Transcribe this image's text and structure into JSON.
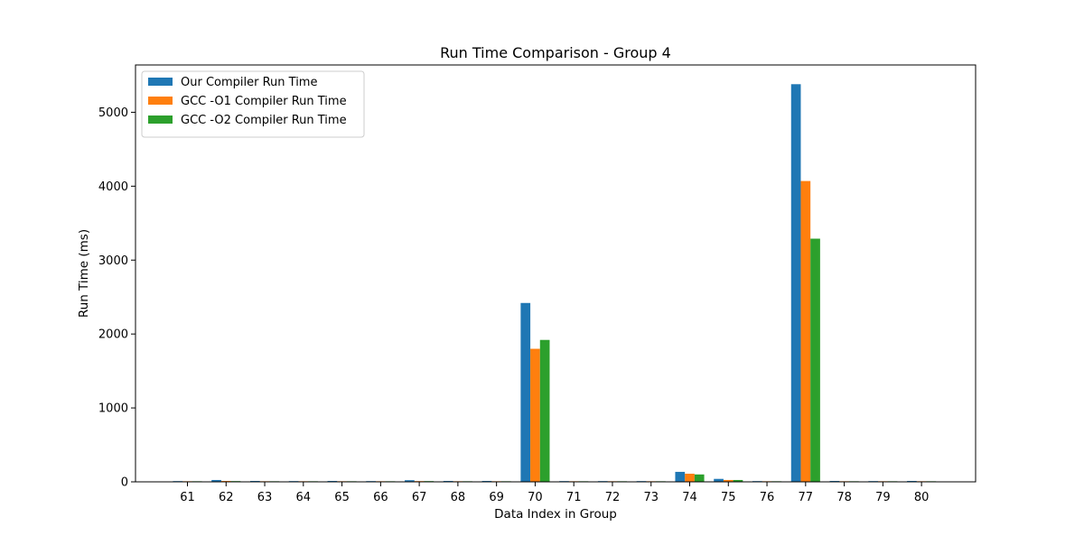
{
  "chart_data": {
    "type": "bar",
    "title": "Run Time Comparison - Group 4",
    "xlabel": "Data Index in Group",
    "ylabel": "Run Time (ms)",
    "ylim": [
      0,
      5640
    ],
    "yticks": [
      0,
      1000,
      2000,
      3000,
      4000,
      5000
    ],
    "grid": false,
    "legend_position": "top-left",
    "categories": [
      "61",
      "62",
      "63",
      "64",
      "65",
      "66",
      "67",
      "68",
      "69",
      "70",
      "71",
      "72",
      "73",
      "74",
      "75",
      "76",
      "77",
      "78",
      "79",
      "80"
    ],
    "series": [
      {
        "name": "Our Compiler Run Time",
        "color": "#1f77b4",
        "values": [
          10,
          25,
          12,
          10,
          12,
          10,
          22,
          12,
          12,
          2420,
          10,
          10,
          10,
          135,
          40,
          10,
          5380,
          12,
          10,
          12
        ]
      },
      {
        "name": "GCC -O1 Compiler Run Time",
        "color": "#ff7f0e",
        "values": [
          8,
          12,
          8,
          8,
          8,
          8,
          10,
          8,
          8,
          1800,
          8,
          8,
          8,
          110,
          25,
          8,
          4070,
          8,
          8,
          8
        ]
      },
      {
        "name": "GCC -O2 Compiler Run Time",
        "color": "#2ca02c",
        "values": [
          8,
          10,
          8,
          8,
          8,
          8,
          10,
          8,
          8,
          1920,
          8,
          8,
          8,
          100,
          25,
          8,
          3290,
          8,
          8,
          8
        ]
      }
    ]
  }
}
